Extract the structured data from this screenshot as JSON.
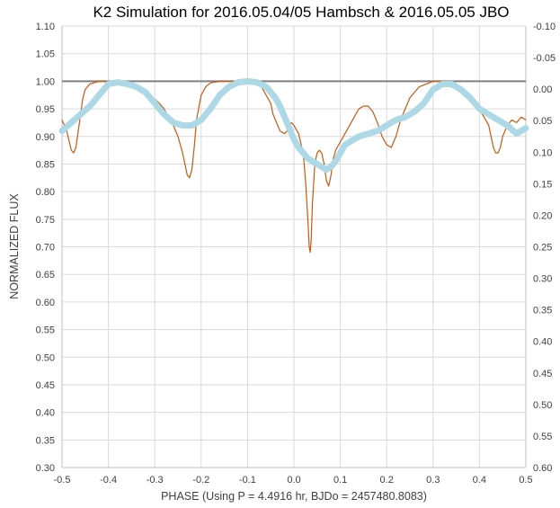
{
  "chart_data": {
    "type": "line",
    "title": "K2 Simulation for 2016.05.04/05 Hambsch & 2016.05.05 JBO",
    "xlabel": "PHASE (Using P = 4.4916 hr, BJDo = 2457480.8083)",
    "ylabel": "NORMALIZED FLUX",
    "xlim": [
      -0.5,
      0.5
    ],
    "ylim": [
      0.3,
      1.1
    ],
    "y2lim": [
      0.6,
      -0.1
    ],
    "grid": true,
    "legend": "none",
    "x_ticks": [
      "-0.5",
      "-0.4",
      "-0.3",
      "-0.2",
      "-0.1",
      "0.0",
      "0.1",
      "0.2",
      "0.3",
      "0.4",
      "0.5"
    ],
    "y_ticks": [
      "0.30",
      "0.35",
      "0.40",
      "0.45",
      "0.50",
      "0.55",
      "0.60",
      "0.65",
      "0.70",
      "0.75",
      "0.80",
      "0.85",
      "0.90",
      "0.95",
      "1.00",
      "1.05",
      "1.10"
    ],
    "y2_ticks": [
      "-0.10",
      "-0.05",
      "0.00",
      "0.05",
      "0.10",
      "0.15",
      "0.20",
      "0.25",
      "0.30",
      "0.35",
      "0.40",
      "0.45",
      "0.50",
      "0.55",
      "0.60"
    ],
    "reference_line": {
      "y": 1.0,
      "color": "#7f7f7f"
    },
    "series": [
      {
        "color": "#c55a11",
        "x": [
          -0.5,
          -0.49,
          -0.48,
          -0.475,
          -0.47,
          -0.465,
          -0.46,
          -0.455,
          -0.45,
          -0.44,
          -0.42,
          -0.4,
          -0.37,
          -0.35,
          -0.33,
          -0.31,
          -0.29,
          -0.28,
          -0.27,
          -0.26,
          -0.25,
          -0.24,
          -0.235,
          -0.23,
          -0.225,
          -0.22,
          -0.215,
          -0.21,
          -0.2,
          -0.19,
          -0.18,
          -0.16,
          -0.14,
          -0.12,
          -0.1,
          -0.08,
          -0.07,
          -0.06,
          -0.05,
          -0.045,
          -0.04,
          -0.03,
          -0.02,
          -0.015,
          -0.01,
          -0.005,
          0.0,
          0.01,
          0.02,
          0.025,
          0.03,
          0.033,
          0.035,
          0.037,
          0.04,
          0.045,
          0.05,
          0.055,
          0.06,
          0.065,
          0.07,
          0.075,
          0.08,
          0.085,
          0.09,
          0.1,
          0.11,
          0.12,
          0.13,
          0.14,
          0.15,
          0.16,
          0.17,
          0.18,
          0.19,
          0.2,
          0.21,
          0.22,
          0.23,
          0.25,
          0.27,
          0.3,
          0.33,
          0.35,
          0.37,
          0.39,
          0.41,
          0.42,
          0.425,
          0.43,
          0.435,
          0.44,
          0.445,
          0.45,
          0.46,
          0.47,
          0.48,
          0.49,
          0.5
        ],
        "y": [
          0.93,
          0.91,
          0.875,
          0.87,
          0.88,
          0.91,
          0.94,
          0.97,
          0.985,
          0.995,
          1.0,
          1.0,
          0.995,
          0.99,
          0.985,
          0.975,
          0.96,
          0.95,
          0.935,
          0.92,
          0.9,
          0.87,
          0.85,
          0.83,
          0.825,
          0.84,
          0.88,
          0.93,
          0.975,
          0.99,
          0.997,
          1.0,
          1.0,
          1.0,
          1.0,
          0.997,
          0.99,
          0.975,
          0.96,
          0.94,
          0.93,
          0.91,
          0.905,
          0.91,
          0.92,
          0.925,
          0.92,
          0.905,
          0.87,
          0.82,
          0.75,
          0.7,
          0.69,
          0.71,
          0.78,
          0.85,
          0.87,
          0.875,
          0.87,
          0.85,
          0.82,
          0.81,
          0.83,
          0.86,
          0.875,
          0.89,
          0.905,
          0.92,
          0.935,
          0.95,
          0.955,
          0.955,
          0.945,
          0.925,
          0.9,
          0.885,
          0.88,
          0.9,
          0.93,
          0.97,
          0.99,
          1.0,
          1.0,
          0.995,
          0.98,
          0.96,
          0.935,
          0.92,
          0.9,
          0.88,
          0.87,
          0.87,
          0.88,
          0.9,
          0.92,
          0.93,
          0.925,
          0.935,
          0.93
        ]
      },
      {
        "color": "#add8e6",
        "x": [
          -0.5,
          -0.48,
          -0.46,
          -0.44,
          -0.42,
          -0.4,
          -0.38,
          -0.36,
          -0.34,
          -0.32,
          -0.3,
          -0.28,
          -0.26,
          -0.24,
          -0.22,
          -0.2,
          -0.18,
          -0.16,
          -0.14,
          -0.12,
          -0.1,
          -0.08,
          -0.06,
          -0.04,
          -0.03,
          -0.02,
          -0.01,
          0.0,
          0.01,
          0.02,
          0.03,
          0.04,
          0.05,
          0.06,
          0.07,
          0.08,
          0.09,
          0.1,
          0.11,
          0.12,
          0.14,
          0.16,
          0.18,
          0.2,
          0.22,
          0.24,
          0.26,
          0.28,
          0.3,
          0.32,
          0.34,
          0.36,
          0.38,
          0.4,
          0.42,
          0.44,
          0.46,
          0.48,
          0.5
        ],
        "y": [
          0.91,
          0.925,
          0.94,
          0.955,
          0.975,
          0.995,
          0.998,
          0.995,
          0.99,
          0.98,
          0.96,
          0.94,
          0.925,
          0.92,
          0.92,
          0.93,
          0.95,
          0.975,
          0.99,
          0.998,
          1.0,
          0.998,
          0.99,
          0.97,
          0.955,
          0.935,
          0.915,
          0.895,
          0.88,
          0.87,
          0.86,
          0.855,
          0.85,
          0.845,
          0.84,
          0.845,
          0.855,
          0.87,
          0.885,
          0.89,
          0.9,
          0.905,
          0.91,
          0.92,
          0.93,
          0.935,
          0.945,
          0.96,
          0.985,
          0.995,
          0.995,
          0.985,
          0.97,
          0.95,
          0.94,
          0.93,
          0.92,
          0.905,
          0.915
        ]
      }
    ]
  }
}
